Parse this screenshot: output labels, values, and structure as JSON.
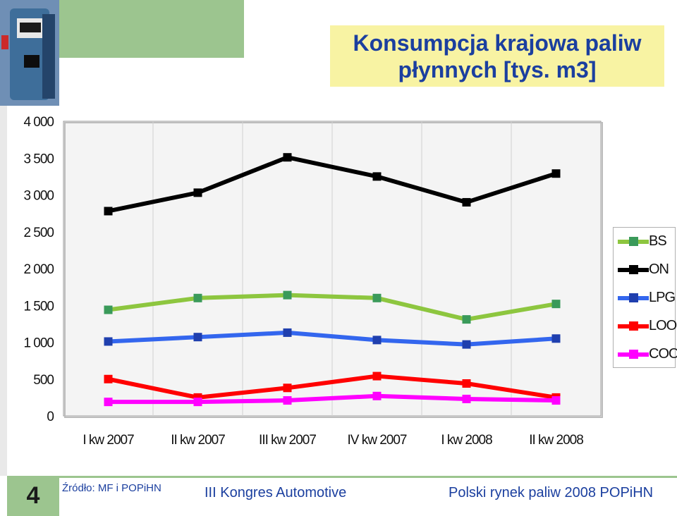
{
  "slide": {
    "title_line1": "Konsumpcja krajowa paliw",
    "title_line2": "płynnych [tys. m3]",
    "number": "4",
    "source": "Źródło: MF i POPiHN",
    "footer_center": "III Kongres Automotive",
    "footer_right": "Polski rynek paliw 2008  POPiHN"
  },
  "chart_data": {
    "type": "line",
    "categories": [
      "I kw  2007",
      "II kw  2007",
      "III kw  2007",
      "IV  kw  2007",
      "I kw  2008",
      "II kw  2008"
    ],
    "y_ticks": [
      "0",
      "500",
      "1 000",
      "1 500",
      "2 000",
      "2 500",
      "3 000",
      "3 500",
      "4 000"
    ],
    "ylim": [
      0,
      4000
    ],
    "grid": "vertical",
    "legend_position": "right",
    "series": [
      {
        "name": "BS",
        "color": "#8dc63f",
        "marker_color": "#3a9a5a",
        "values": [
          1440,
          1600,
          1640,
          1600,
          1310,
          1520
        ]
      },
      {
        "name": "ON",
        "color": "#000000",
        "marker_color": "#000000",
        "values": [
          2780,
          3030,
          3510,
          3250,
          2900,
          3290
        ]
      },
      {
        "name": "LPG",
        "color": "#3366ee",
        "marker_color": "#1f3fae",
        "values": [
          1010,
          1070,
          1130,
          1030,
          970,
          1050
        ]
      },
      {
        "name": "LOO",
        "color": "#ff0000",
        "marker_color": "#ff0000",
        "values": [
          500,
          250,
          380,
          540,
          440,
          250
        ]
      },
      {
        "name": "COO",
        "color": "#ff00ff",
        "marker_color": "#ff00ff",
        "values": [
          190,
          190,
          210,
          270,
          230,
          210
        ]
      }
    ]
  }
}
